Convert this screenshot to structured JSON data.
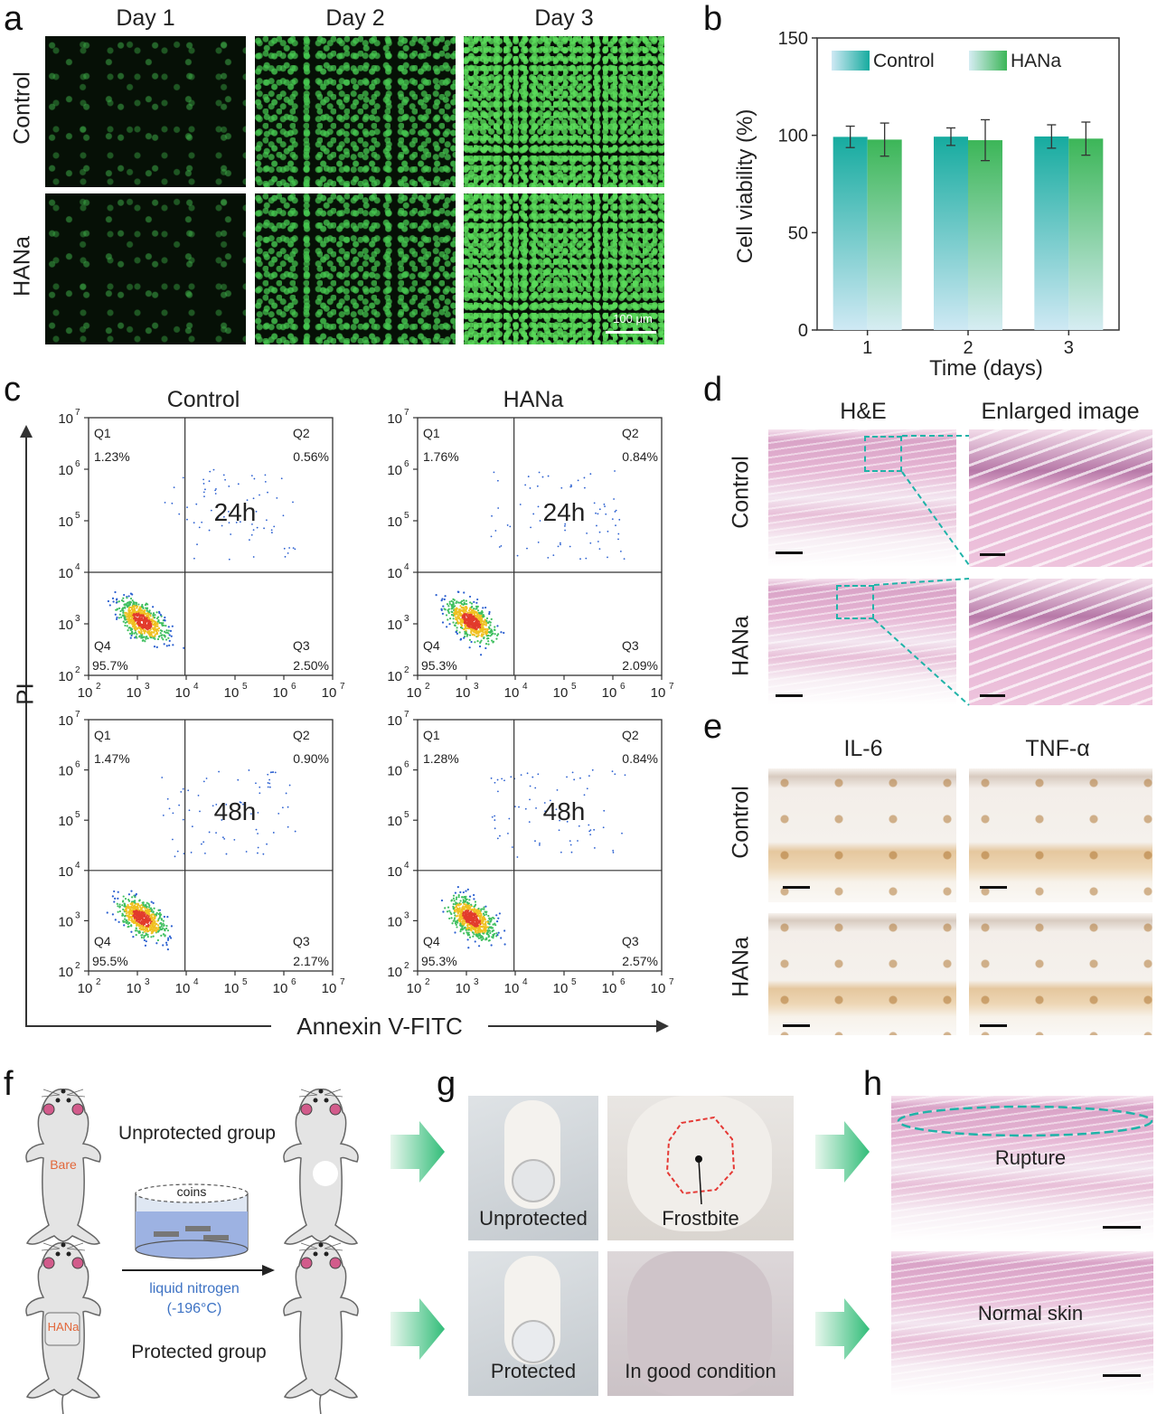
{
  "panels": {
    "a": "a",
    "b": "b",
    "c": "c",
    "d": "d",
    "e": "e",
    "f": "f",
    "g": "g",
    "h": "h"
  },
  "panel_a": {
    "columns": [
      "Day 1",
      "Day 2",
      "Day 3"
    ],
    "rows": [
      "Control",
      "HANa"
    ],
    "scale_bar": "100 μm"
  },
  "panel_c": {
    "col_titles": [
      "Control",
      "HANa"
    ],
    "y_axis_label": "PI",
    "x_axis_label": "Annexin V-FITC",
    "tick_labels": [
      "10",
      "10",
      "10",
      "10",
      "10",
      "10"
    ],
    "tick_exps": [
      "2",
      "3",
      "4",
      "5",
      "6",
      "7"
    ],
    "plots": [
      {
        "time": "24h",
        "q1": "Q1",
        "q1v": "1.23%",
        "q2": "Q2",
        "q2v": "0.56%",
        "q3": "Q3",
        "q3v": "2.50%",
        "q4": "Q4",
        "q4v": "95.7%"
      },
      {
        "time": "24h",
        "q1": "Q1",
        "q1v": "1.76%",
        "q2": "Q2",
        "q2v": "0.84%",
        "q3": "Q3",
        "q3v": "2.09%",
        "q4": "Q4",
        "q4v": "95.3%"
      },
      {
        "time": "48h",
        "q1": "Q1",
        "q1v": "1.47%",
        "q2": "Q2",
        "q2v": "0.90%",
        "q3": "Q3",
        "q3v": "2.17%",
        "q4": "Q4",
        "q4v": "95.5%"
      },
      {
        "time": "48h",
        "q1": "Q1",
        "q1v": "1.28%",
        "q2": "Q2",
        "q2v": "0.84%",
        "q3": "Q3",
        "q3v": "2.57%",
        "q4": "Q4",
        "q4v": "95.3%"
      }
    ]
  },
  "panel_d": {
    "col_titles": [
      "H&E",
      "Enlarged image"
    ],
    "rows": [
      "Control",
      "HANa"
    ]
  },
  "panel_e": {
    "col_titles": [
      "IL-6",
      "TNF-α"
    ],
    "rows": [
      "Control",
      "HANa"
    ]
  },
  "panel_f": {
    "unprotected": "Unprotected group",
    "protected": "Protected group",
    "bare": "Bare",
    "hana": "HANa",
    "coins": "coins",
    "ln2_line1": "liquid nitrogen",
    "ln2_line2": "(-196°C)"
  },
  "panel_g": {
    "labels": [
      "Unprotected",
      "Frostbite",
      "Protected",
      "In good condition"
    ]
  },
  "panel_h": {
    "labels": [
      "Rupture",
      "Normal skin"
    ]
  },
  "colors": {
    "control": "#19b3a6",
    "hana": "#3cb95c",
    "arrow": "#35c07a",
    "dashed": "#1fb3a8"
  },
  "chart_data": {
    "type": "bar",
    "categories": [
      "1",
      "2",
      "3"
    ],
    "series": [
      {
        "name": "Control",
        "values": [
          99.2,
          99.3,
          99.4
        ],
        "errors": [
          5.5,
          4.5,
          6.0
        ]
      },
      {
        "name": "HANa",
        "values": [
          97.8,
          97.5,
          98.3
        ],
        "errors": [
          8.5,
          10.5,
          8.5
        ]
      }
    ],
    "xlabel": "Time (days)",
    "ylabel": "Cell viability (%)",
    "ylim": [
      0,
      150
    ],
    "yticks": [
      0,
      50,
      100,
      150
    ],
    "legend": "top"
  }
}
